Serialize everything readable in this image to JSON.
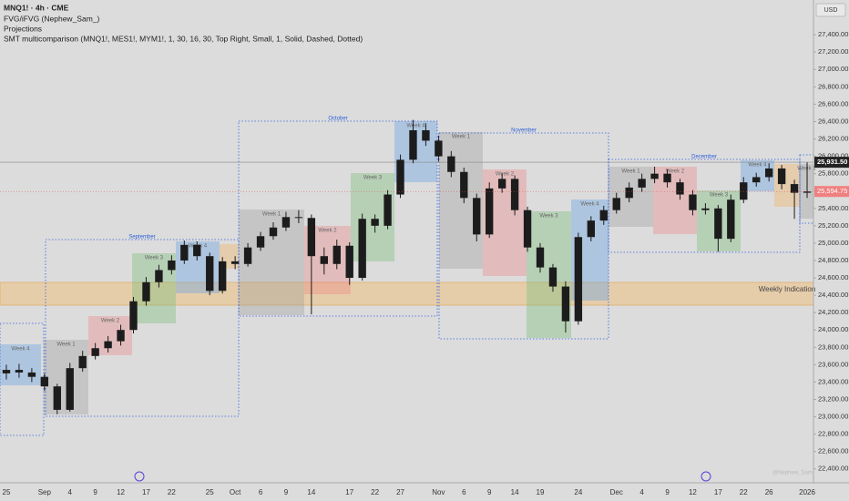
{
  "header": {
    "symbol": "MNQ1! · 4h · CME",
    "indicators": [
      "FVG/iFVG (Nephew_Sam_)",
      "Projections",
      "SMT multicomparison (MNQ1!, MES1!, MYM1!, 1, 30, 16, 30, Top Right, Small, 1, Solid, Dashed, Dotted)"
    ],
    "currency": "USD",
    "watermark": "@Nephew_Sam"
  },
  "chart_data": {
    "type": "candlestick",
    "categories": [
      "25",
      null,
      null,
      "Sep",
      null,
      "4",
      null,
      "9",
      null,
      "12",
      null,
      "17",
      null,
      "22",
      null,
      null,
      "25",
      null,
      "Oct",
      null,
      "6",
      null,
      "9",
      null,
      "14",
      null,
      null,
      "17",
      null,
      "22",
      null,
      "27",
      null,
      null,
      "Nov",
      null,
      "6",
      null,
      "9",
      null,
      "14",
      null,
      "19",
      null,
      null,
      "24",
      null,
      null,
      "Dec",
      null,
      "4",
      null,
      "9",
      null,
      "12",
      null,
      "17",
      null,
      "22",
      null,
      "26",
      null,
      null,
      "2026"
    ],
    "open": [
      23500,
      23540,
      23510,
      23460,
      23350,
      23080,
      23560,
      23700,
      23790,
      23870,
      24000,
      24330,
      24550,
      24690,
      24800,
      24980,
      24850,
      24450,
      24790,
      24760,
      24950,
      25080,
      25180,
      25300,
      25290,
      24850,
      24760,
      24970,
      24600,
      25280,
      25200,
      25560,
      25960,
      26300,
      26180,
      26000,
      25820,
      25520,
      25100,
      25630,
      25740,
      25380,
      24950,
      24720,
      24500,
      24100,
      25070,
      25260,
      25380,
      25520,
      25640,
      25740,
      25800,
      25700,
      25560,
      25380,
      25400,
      25050,
      25500,
      25700,
      25760,
      25860,
      25680,
      25580
    ],
    "high": [
      23600,
      23610,
      23560,
      23500,
      23380,
      23620,
      23760,
      23850,
      23930,
      24060,
      24380,
      24610,
      24750,
      24860,
      25030,
      25020,
      24890,
      24840,
      24850,
      25000,
      25130,
      25240,
      25360,
      25380,
      25330,
      24950,
      25040,
      25010,
      25340,
      25330,
      25610,
      26020,
      26420,
      26380,
      26240,
      26060,
      25870,
      25570,
      25700,
      25800,
      25780,
      25420,
      25000,
      24760,
      24560,
      25120,
      25310,
      25430,
      25580,
      25700,
      25800,
      25880,
      25850,
      25740,
      25610,
      25460,
      25440,
      25560,
      25760,
      25810,
      25920,
      25900,
      25730,
      25930
    ],
    "low": [
      23430,
      23450,
      23400,
      23300,
      23030,
      23060,
      23520,
      23660,
      23740,
      23820,
      23960,
      24280,
      24490,
      24640,
      24760,
      24800,
      24400,
      24420,
      24700,
      24730,
      24910,
      25040,
      25140,
      25230,
      24180,
      24640,
      24700,
      24520,
      24570,
      25120,
      25160,
      25520,
      25920,
      26120,
      25940,
      25760,
      25460,
      25020,
      25060,
      25580,
      25320,
      24900,
      24660,
      24440,
      23970,
      24060,
      25020,
      25210,
      25340,
      25470,
      25590,
      25690,
      25640,
      25500,
      25320,
      25330,
      24900,
      25010,
      25460,
      25650,
      25710,
      25620,
      25280,
      25520
    ],
    "close": [
      23540,
      23510,
      23460,
      23350,
      23080,
      23560,
      23700,
      23790,
      23870,
      24000,
      24330,
      24550,
      24690,
      24800,
      24980,
      24850,
      24450,
      24790,
      24760,
      24950,
      25080,
      25180,
      25300,
      25290,
      24850,
      24760,
      24970,
      24600,
      25280,
      25200,
      25560,
      25960,
      26300,
      26180,
      26000,
      25820,
      25520,
      25100,
      25630,
      25740,
      25380,
      24950,
      24720,
      24500,
      24100,
      25070,
      25260,
      25380,
      25520,
      25640,
      25740,
      25800,
      25700,
      25560,
      25380,
      25400,
      25050,
      25500,
      25700,
      25760,
      25860,
      25680,
      25580,
      25594.75
    ],
    "last_close_label": "25,594.75",
    "prev_close": {
      "value": 25931.5,
      "label": "25,931.50"
    },
    "up_color": "#1c1c1c",
    "down_color": "#1c1c1c",
    "ylim": [
      22240,
      27800
    ],
    "yticks": [
      {
        "value": 22400,
        "label": "22,400.00"
      },
      {
        "value": 22600,
        "label": "22,600.00"
      },
      {
        "value": 22800,
        "label": "22,800.00"
      },
      {
        "value": 23000,
        "label": "23,000.00"
      },
      {
        "value": 23200,
        "label": "23,200.00"
      },
      {
        "value": 23400,
        "label": "23,400.00"
      },
      {
        "value": 23600,
        "label": "23,600.00"
      },
      {
        "value": 23800,
        "label": "23,800.00"
      },
      {
        "value": 24000,
        "label": "24,000.00"
      },
      {
        "value": 24200,
        "label": "24,200.00"
      },
      {
        "value": 24400,
        "label": "24,400.00"
      },
      {
        "value": 24600,
        "label": "24,600.00"
      },
      {
        "value": 24800,
        "label": "24,800.00"
      },
      {
        "value": 25000,
        "label": "25,000.00"
      },
      {
        "value": 25200,
        "label": "25,200.00"
      },
      {
        "value": 25400,
        "label": "25,400.00"
      },
      {
        "value": 25600,
        "label": "25,600.00"
      },
      {
        "value": 25800,
        "label": "25,800.00"
      },
      {
        "value": 26000,
        "label": "26,000.00"
      },
      {
        "value": 26200,
        "label": "26,200.00"
      },
      {
        "value": 26400,
        "label": "26,400.00"
      },
      {
        "value": 26600,
        "label": "26,600.00"
      },
      {
        "value": 26800,
        "label": "26,800.00"
      },
      {
        "value": 27000,
        "label": "27,000.00"
      },
      {
        "value": 27200,
        "label": "27,200.00"
      },
      {
        "value": 27400,
        "label": "27,400.00"
      }
    ],
    "grid": false,
    "week_labels": [
      "Week 4",
      "Week 1",
      "Week 2",
      "Week 3",
      "Week 4",
      "Week 1",
      "Week 2",
      "Week 3",
      "Week 4",
      "Week 1",
      "Week 2",
      "Week 3",
      "Week 4",
      "Week 1",
      "Week 2",
      "Week 3",
      "Week 4",
      "Week 1"
    ],
    "month_labels": [
      "September",
      "October",
      "November",
      "December"
    ],
    "band_label": "Weekly Indication"
  }
}
